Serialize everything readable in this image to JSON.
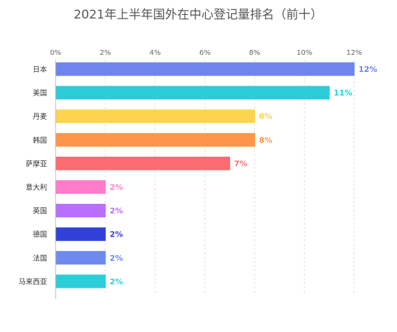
{
  "chart_data": {
    "type": "bar",
    "orientation": "horizontal",
    "title": "2021年上半年国外在中心登记量排名（前十）",
    "xlabel": "",
    "ylabel": "",
    "xlim": [
      0,
      12
    ],
    "x_ticks": [
      0,
      2,
      4,
      6,
      8,
      10,
      12
    ],
    "x_tick_labels": [
      "0%",
      "2%",
      "4%",
      "6%",
      "8%",
      "10%",
      "12%"
    ],
    "x_axis_position": "top",
    "grid": true,
    "categories": [
      "日本",
      "美国",
      "丹麦",
      "韩国",
      "萨摩亚",
      "意大利",
      "英国",
      "德国",
      "法国",
      "马来西亚"
    ],
    "values": [
      12,
      11,
      8,
      8,
      7,
      2,
      2,
      2,
      2,
      2
    ],
    "value_labels": [
      "12%",
      "11%",
      "8%",
      "8%",
      "7%",
      "2%",
      "2%",
      "2%",
      "2%",
      "2%"
    ],
    "colors": [
      "#6e84ee",
      "#2ccdd9",
      "#fdd44f",
      "#fe9549",
      "#fc6c73",
      "#fd7cca",
      "#b86ffe",
      "#3242d9",
      "#6e8aee",
      "#2ccdd9"
    ]
  }
}
